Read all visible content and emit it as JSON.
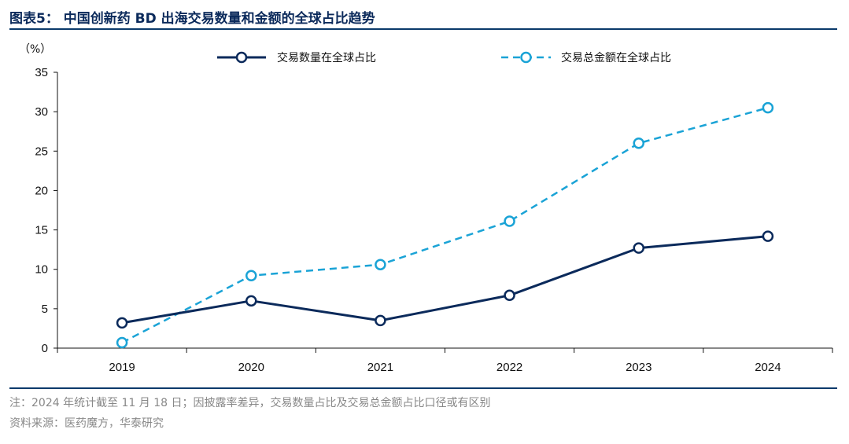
{
  "figure": {
    "title": "图表5：  中国创新药 BD 出海交易数量和金额的全球占比趋势",
    "note": "注：2024 年统计截至 11 月 18 日；因披露率差异，交易数量占比及交易总金额占比口径或有区别",
    "source": "资料来源：医药魔方，华泰研究"
  },
  "chart_data": {
    "type": "line",
    "y_unit": "（%）",
    "x": [
      "2019",
      "2020",
      "2021",
      "2022",
      "2023",
      "2024"
    ],
    "ylim": [
      0,
      35
    ],
    "yticks": [
      0,
      5,
      10,
      15,
      20,
      25,
      30,
      35
    ],
    "grid": false,
    "legend_position": "top",
    "series": [
      {
        "name": "交易数量在全球占比",
        "values": [
          3.2,
          6.0,
          3.5,
          6.7,
          12.7,
          14.2
        ],
        "color": "#0b2a5b",
        "style": "solid"
      },
      {
        "name": "交易总金额在全球占比",
        "values": [
          0.7,
          9.2,
          10.6,
          16.1,
          26.0,
          30.5
        ],
        "color": "#1aa3d6",
        "style": "dashed"
      }
    ]
  }
}
